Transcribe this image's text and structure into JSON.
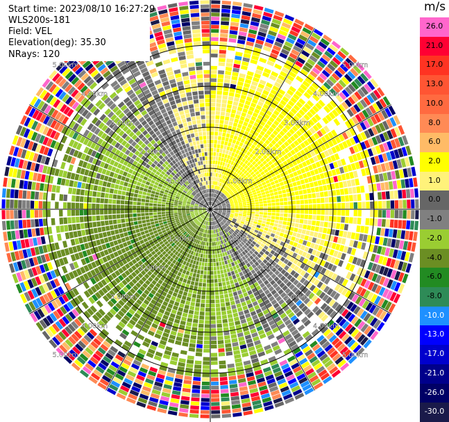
{
  "info": {
    "start_time": "Start time: 2023/08/10 16:27:29",
    "device": "WLS200s-181",
    "field": "Field: VEL",
    "elevation": "Elevation(deg): 35.30",
    "nrays": "NRays: 120"
  },
  "colorbar": {
    "unit": "m/s",
    "levels": [
      {
        "label": "26.0",
        "color": "#ff66cc"
      },
      {
        "label": "21.0",
        "color": "#ff0033"
      },
      {
        "label": "17.0",
        "color": "#ff3322"
      },
      {
        "label": "13.0",
        "color": "#ff5533"
      },
      {
        "label": "10.0",
        "color": "#ff6a40"
      },
      {
        "label": "8.0",
        "color": "#ff8a55"
      },
      {
        "label": "6.0",
        "color": "#ffbb66"
      },
      {
        "label": "2.0",
        "color": "#ffff00"
      },
      {
        "label": "1.0",
        "color": "#fff27a"
      },
      {
        "label": "0.0",
        "color": "#666666"
      },
      {
        "label": "-1.0",
        "color": "#808080"
      },
      {
        "label": "-2.0",
        "color": "#9acd32"
      },
      {
        "label": "-4.0",
        "color": "#6b8e23"
      },
      {
        "label": "-6.0",
        "color": "#228b22"
      },
      {
        "label": "-8.0",
        "color": "#2e8b57"
      },
      {
        "label": "-10.0",
        "color": "#1e90ff"
      },
      {
        "label": "-13.0",
        "color": "#0000ff"
      },
      {
        "label": "-17.0",
        "color": "#0000cd"
      },
      {
        "label": "-21.0",
        "color": "#00008b"
      },
      {
        "label": "-26.0",
        "color": "#000066"
      },
      {
        "label": "-30.0",
        "color": "#1a1a4a"
      }
    ]
  },
  "chart_data": {
    "type": "heatmap",
    "projection": "polar",
    "field": "VEL",
    "unit": "m/s",
    "nrays": 120,
    "elevation_deg": 35.3,
    "range_rings_km": [
      1.0,
      2.0,
      3.0,
      4.0,
      5.0
    ],
    "ring_labels": {
      "1": "1.00km",
      "2": "2.00km",
      "3": "3.00km",
      "4": "4.00km",
      "5": "5.00km"
    },
    "clean_radius_km": 4.1,
    "description_zones": {
      "near_left_south": "negative velocities (~ -2 to -4 m/s, green)",
      "near_right_north": "positive velocities (~ +1 to +2 m/s, yellow)",
      "center": "near zero (grey)",
      "beyond_4km": "noise / no valid data"
    }
  }
}
